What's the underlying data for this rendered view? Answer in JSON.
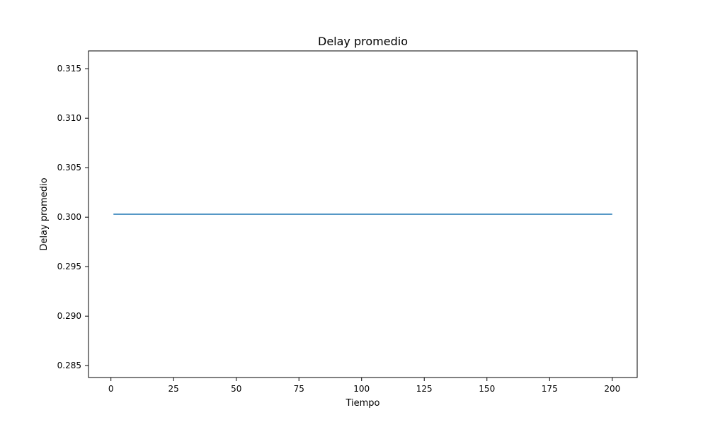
{
  "chart_data": {
    "type": "line",
    "title": "Delay promedio",
    "xlabel": "Tiempo",
    "ylabel": "Delay promedio",
    "xlim": [
      -8.95,
      209.95
    ],
    "ylim": [
      0.2838,
      0.3168
    ],
    "x_ticks": [
      0,
      25,
      50,
      75,
      100,
      125,
      150,
      175,
      200
    ],
    "y_ticks": [
      0.285,
      0.29,
      0.295,
      0.3,
      0.305,
      0.31,
      0.315
    ],
    "x_tick_labels": [
      "0",
      "25",
      "50",
      "75",
      "100",
      "125",
      "150",
      "175",
      "200"
    ],
    "y_tick_labels": [
      "0.285",
      "0.290",
      "0.295",
      "0.300",
      "0.305",
      "0.310",
      "0.315"
    ],
    "grid": false,
    "series": [
      {
        "x": [
          1,
          200
        ],
        "values": [
          0.3003,
          0.3003
        ],
        "color": "#1f77b4"
      }
    ]
  }
}
